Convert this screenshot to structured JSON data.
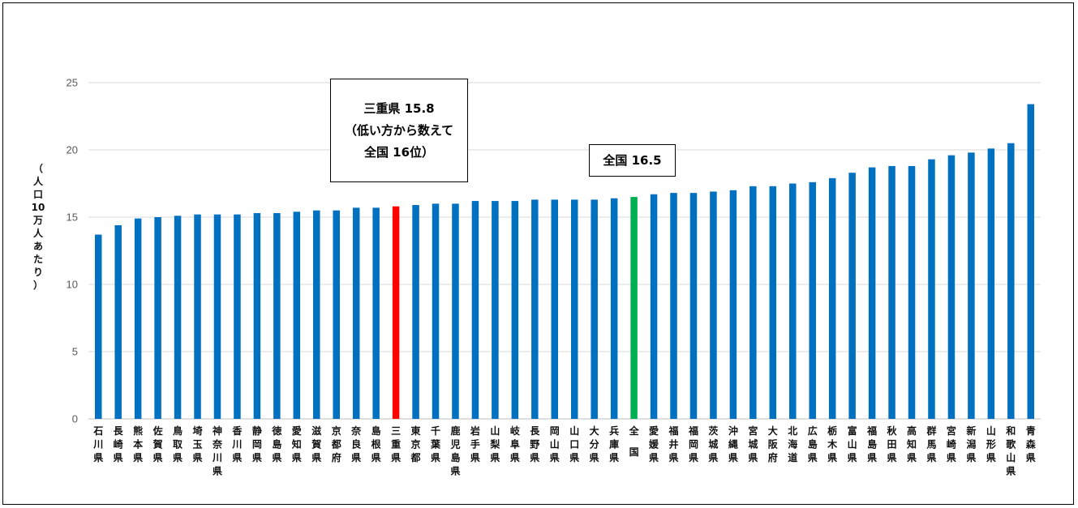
{
  "chart_data": {
    "type": "bar",
    "ylabel": "（人口10万人あたり）",
    "ylim": [
      0,
      25
    ],
    "yticks": [
      0,
      5,
      10,
      15,
      20,
      25
    ],
    "grid": true,
    "categories": [
      "石川県",
      "長崎県",
      "熊本県",
      "佐賀県",
      "鳥取県",
      "埼玉県",
      "神奈川県",
      "香川県",
      "静岡県",
      "徳島県",
      "愛知県",
      "滋賀県",
      "京都府",
      "奈良県",
      "島根県",
      "三重県",
      "東京都",
      "千葉県",
      "鹿児島県",
      "岩手県",
      "山梨県",
      "岐阜県",
      "長野県",
      "岡山県",
      "山口県",
      "大分県",
      "兵庫県",
      "全国",
      "愛媛県",
      "福井県",
      "福岡県",
      "茨城県",
      "沖縄県",
      "宮城県",
      "大阪府",
      "北海道",
      "広島県",
      "栃木県",
      "富山県",
      "福島県",
      "秋田県",
      "高知県",
      "群馬県",
      "宮崎県",
      "新潟県",
      "山形県",
      "和歌山県",
      "青森県"
    ],
    "values": [
      13.7,
      14.4,
      14.9,
      15.0,
      15.1,
      15.2,
      15.2,
      15.2,
      15.3,
      15.3,
      15.4,
      15.5,
      15.5,
      15.7,
      15.7,
      15.8,
      15.9,
      16.0,
      16.0,
      16.2,
      16.2,
      16.2,
      16.3,
      16.3,
      16.3,
      16.3,
      16.4,
      16.5,
      16.7,
      16.8,
      16.8,
      16.9,
      17.0,
      17.3,
      17.3,
      17.5,
      17.6,
      17.9,
      18.3,
      18.7,
      18.8,
      18.8,
      19.3,
      19.6,
      19.8,
      20.1,
      20.5,
      23.4
    ],
    "highlight": {
      "三重県": "#FF0000",
      "全国": "#00B050"
    },
    "default_color": "#0070C0"
  },
  "callouts": {
    "mie": {
      "lines": [
        "三重県 15.8",
        "（低い方から数えて",
        "全国 16位）"
      ]
    },
    "national": {
      "lines": [
        "全国 16.5"
      ]
    }
  }
}
